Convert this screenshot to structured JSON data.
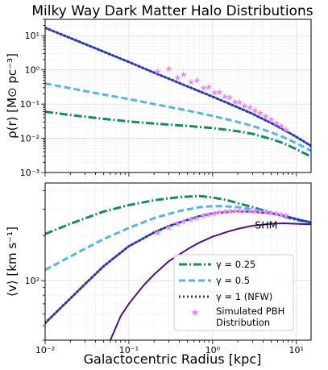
{
  "figure": {
    "title": "Milky Way Dark Matter Halo Distributions",
    "xlabel": "Galactocentric Radius [kpc]"
  },
  "chart_data": [
    {
      "type": "line",
      "panel": "top",
      "ylabel": "ρ(r) [M⊙ pc⁻³]",
      "xscale": "log",
      "yscale": "log",
      "xlim": [
        0.01,
        15
      ],
      "ylim": [
        0.001,
        30
      ],
      "x_ticks": [
        0.01,
        0.1,
        1,
        10
      ],
      "x_tick_labels": [
        "",
        "",
        "",
        ""
      ],
      "y_ticks": [
        0.001,
        0.01,
        0.1,
        1,
        10
      ],
      "y_tick_labels": [
        "10⁻³",
        "10⁻²",
        "10⁻¹",
        "10⁰",
        "10¹"
      ],
      "grid": true,
      "series": [
        {
          "name": "γ = 0.25",
          "color": "#168a66",
          "dash": "dashdot",
          "x": [
            0.01,
            0.02,
            0.05,
            0.1,
            0.2,
            0.5,
            1,
            2,
            3,
            5,
            7,
            10,
            15
          ],
          "y": [
            0.06,
            0.048,
            0.037,
            0.031,
            0.027,
            0.023,
            0.02,
            0.016,
            0.0135,
            0.0095,
            0.0072,
            0.0048,
            0.0029
          ]
        },
        {
          "name": "γ = 0.5",
          "color": "#59b3e6",
          "dash": "dashed",
          "x": [
            0.01,
            0.02,
            0.05,
            0.1,
            0.2,
            0.5,
            1,
            2,
            3,
            5,
            7,
            10,
            15
          ],
          "y": [
            0.4,
            0.29,
            0.19,
            0.14,
            0.1,
            0.065,
            0.045,
            0.03,
            0.023,
            0.015,
            0.0108,
            0.0072,
            0.0043
          ]
        },
        {
          "name": "γ = 1 (NFW)",
          "color": "#2a3aa8",
          "dash": "dotted",
          "x": [
            0.01,
            0.02,
            0.05,
            0.1,
            0.2,
            0.5,
            1,
            2,
            3,
            5,
            7,
            10,
            15
          ],
          "y": [
            17,
            8.5,
            3.4,
            1.7,
            0.83,
            0.33,
            0.165,
            0.08,
            0.052,
            0.028,
            0.018,
            0.011,
            0.006
          ]
        },
        {
          "name": "Simulated PBH Distribution",
          "color": "#ee88ee",
          "marker": "star",
          "x": [
            0.22,
            0.3,
            0.38,
            0.45,
            0.55,
            0.65,
            0.78,
            0.9,
            1.05,
            1.2,
            1.4,
            1.6,
            1.85,
            2.1,
            2.4,
            2.8,
            3.2,
            3.7,
            4.3,
            5,
            5.8,
            6.6,
            7.5
          ],
          "y": [
            0.9,
            1.1,
            0.6,
            0.75,
            0.45,
            0.5,
            0.3,
            0.32,
            0.22,
            0.23,
            0.17,
            0.16,
            0.12,
            0.115,
            0.09,
            0.082,
            0.066,
            0.056,
            0.045,
            0.036,
            0.028,
            0.023,
            0.018
          ]
        }
      ]
    },
    {
      "type": "line",
      "panel": "bottom",
      "ylabel": "⟨v⟩ [km s⁻¹]",
      "xscale": "log",
      "yscale": "log",
      "xlim": [
        0.01,
        15
      ],
      "ylim": [
        40,
        450
      ],
      "x_ticks": [
        0.01,
        0.1,
        1,
        10
      ],
      "x_tick_labels": [
        "10⁻²",
        "10⁻¹",
        "10⁰",
        "10¹"
      ],
      "y_ticks": [
        100
      ],
      "y_tick_labels": [
        "10²"
      ],
      "grid": true,
      "legend": "lower-right",
      "annotation": {
        "text": "SHM",
        "x": 3.2,
        "y": 235
      },
      "series": [
        {
          "name": "γ = 0.25",
          "color": "#168a66",
          "dash": "dashdot",
          "x": [
            0.01,
            0.02,
            0.05,
            0.1,
            0.2,
            0.4,
            0.7,
            1,
            1.5,
            2,
            3,
            5,
            7,
            10,
            15
          ],
          "y": [
            205,
            240,
            290,
            320,
            345,
            362,
            368,
            360,
            345,
            330,
            310,
            285,
            270,
            255,
            245
          ]
        },
        {
          "name": "γ = 0.5",
          "color": "#59b3e6",
          "dash": "dashed",
          "x": [
            0.01,
            0.02,
            0.05,
            0.1,
            0.2,
            0.4,
            0.7,
            1,
            1.5,
            2,
            3,
            5,
            7,
            10,
            15
          ],
          "y": [
            118,
            145,
            190,
            225,
            262,
            292,
            310,
            315,
            314,
            310,
            300,
            285,
            272,
            258,
            245
          ]
        },
        {
          "name": "γ = 1 (NFW)",
          "color": "#2a3aa8",
          "dash": "dotted",
          "x": [
            0.01,
            0.015,
            0.02,
            0.03,
            0.05,
            0.1,
            0.2,
            0.3,
            0.5,
            0.7,
            1,
            1.5,
            2,
            3,
            5,
            7,
            10,
            15
          ],
          "y": [
            52,
            65,
            76,
            95,
            125,
            170,
            210,
            232,
            255,
            270,
            282,
            290,
            292,
            290,
            283,
            272,
            258,
            245
          ]
        },
        {
          "name": "SHM",
          "color": "#4b0f8c",
          "dash": "solid",
          "x": [
            0.06,
            0.08,
            0.1,
            0.15,
            0.2,
            0.3,
            0.5,
            0.7,
            1,
            1.5,
            2,
            3,
            5,
            7,
            10,
            15
          ],
          "y": [
            40,
            58,
            70,
            93,
            110,
            135,
            162,
            180,
            197,
            212,
            222,
            233,
            240,
            242,
            240,
            238
          ]
        },
        {
          "name": "Simulated PBH Distribution",
          "color": "#ee88ee",
          "marker": "star",
          "x": [
            0.22,
            0.3,
            0.38,
            0.45,
            0.55,
            0.65,
            0.78,
            0.9,
            1.05,
            1.2,
            1.4,
            1.6,
            1.85,
            2.1,
            2.4,
            2.8,
            3.2,
            3.7,
            4.3,
            5,
            5.8,
            6.6,
            7.5
          ],
          "y": [
            210,
            228,
            240,
            250,
            258,
            264,
            272,
            278,
            283,
            287,
            290,
            292,
            293,
            294,
            294,
            293,
            292,
            290,
            288,
            285,
            282,
            278,
            274
          ]
        }
      ]
    }
  ],
  "legend": {
    "entries": [
      {
        "label": "γ = 0.25",
        "color": "#168a66",
        "dash": "dashdot"
      },
      {
        "label": "γ = 0.5",
        "color": "#59b3e6",
        "dash": "dashed"
      },
      {
        "label": "γ = 1 (NFW)",
        "color": "#2a3aa8",
        "dash": "dotted"
      },
      {
        "label_line1": "Simulated PBH",
        "label_line2": "Distribution",
        "color": "#ee88ee",
        "marker": "star"
      }
    ]
  }
}
